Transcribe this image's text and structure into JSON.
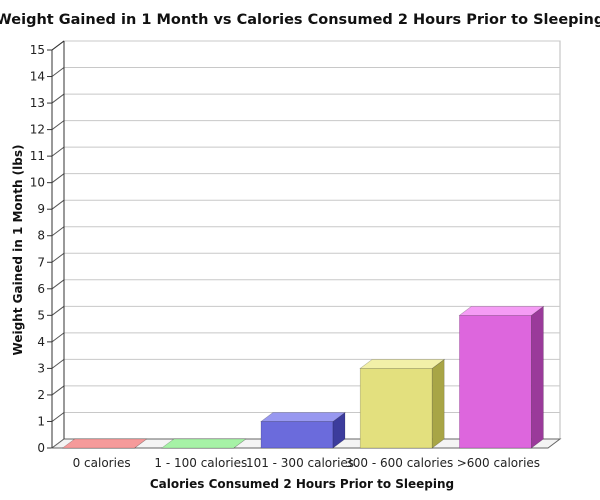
{
  "chart_data": {
    "type": "bar",
    "title": "Weight Gained in 1 Month vs Calories Consumed 2 Hours Prior to Sleeping",
    "xlabel": "Calories Consumed 2 Hours Prior to Sleeping",
    "ylabel": "Weight Gained in 1 Month (lbs)",
    "categories": [
      "0 calories",
      "1 - 100 calories",
      "101 - 300 calories",
      "300 - 600 calories",
      ">600 calories"
    ],
    "values": [
      0,
      0,
      1,
      3,
      5
    ],
    "ylim": [
      0,
      15
    ],
    "yticks": [
      0,
      1,
      2,
      3,
      4,
      5,
      6,
      7,
      8,
      9,
      10,
      11,
      12,
      13,
      14,
      15
    ],
    "grid": true,
    "legend": "none",
    "colors": [
      {
        "front": "#ee6a6a",
        "top": "#f59a9a",
        "side": "#b84444"
      },
      {
        "front": "#77e077",
        "top": "#a6f2a6",
        "side": "#4aa84a"
      },
      {
        "front": "#6b6bdc",
        "top": "#9898f0",
        "side": "#3c3c9c"
      },
      {
        "front": "#e3e07e",
        "top": "#f2f0a8",
        "side": "#a8a546"
      },
      {
        "front": "#dd66dd",
        "top": "#f59cf5",
        "side": "#9a3a9a"
      }
    ]
  }
}
